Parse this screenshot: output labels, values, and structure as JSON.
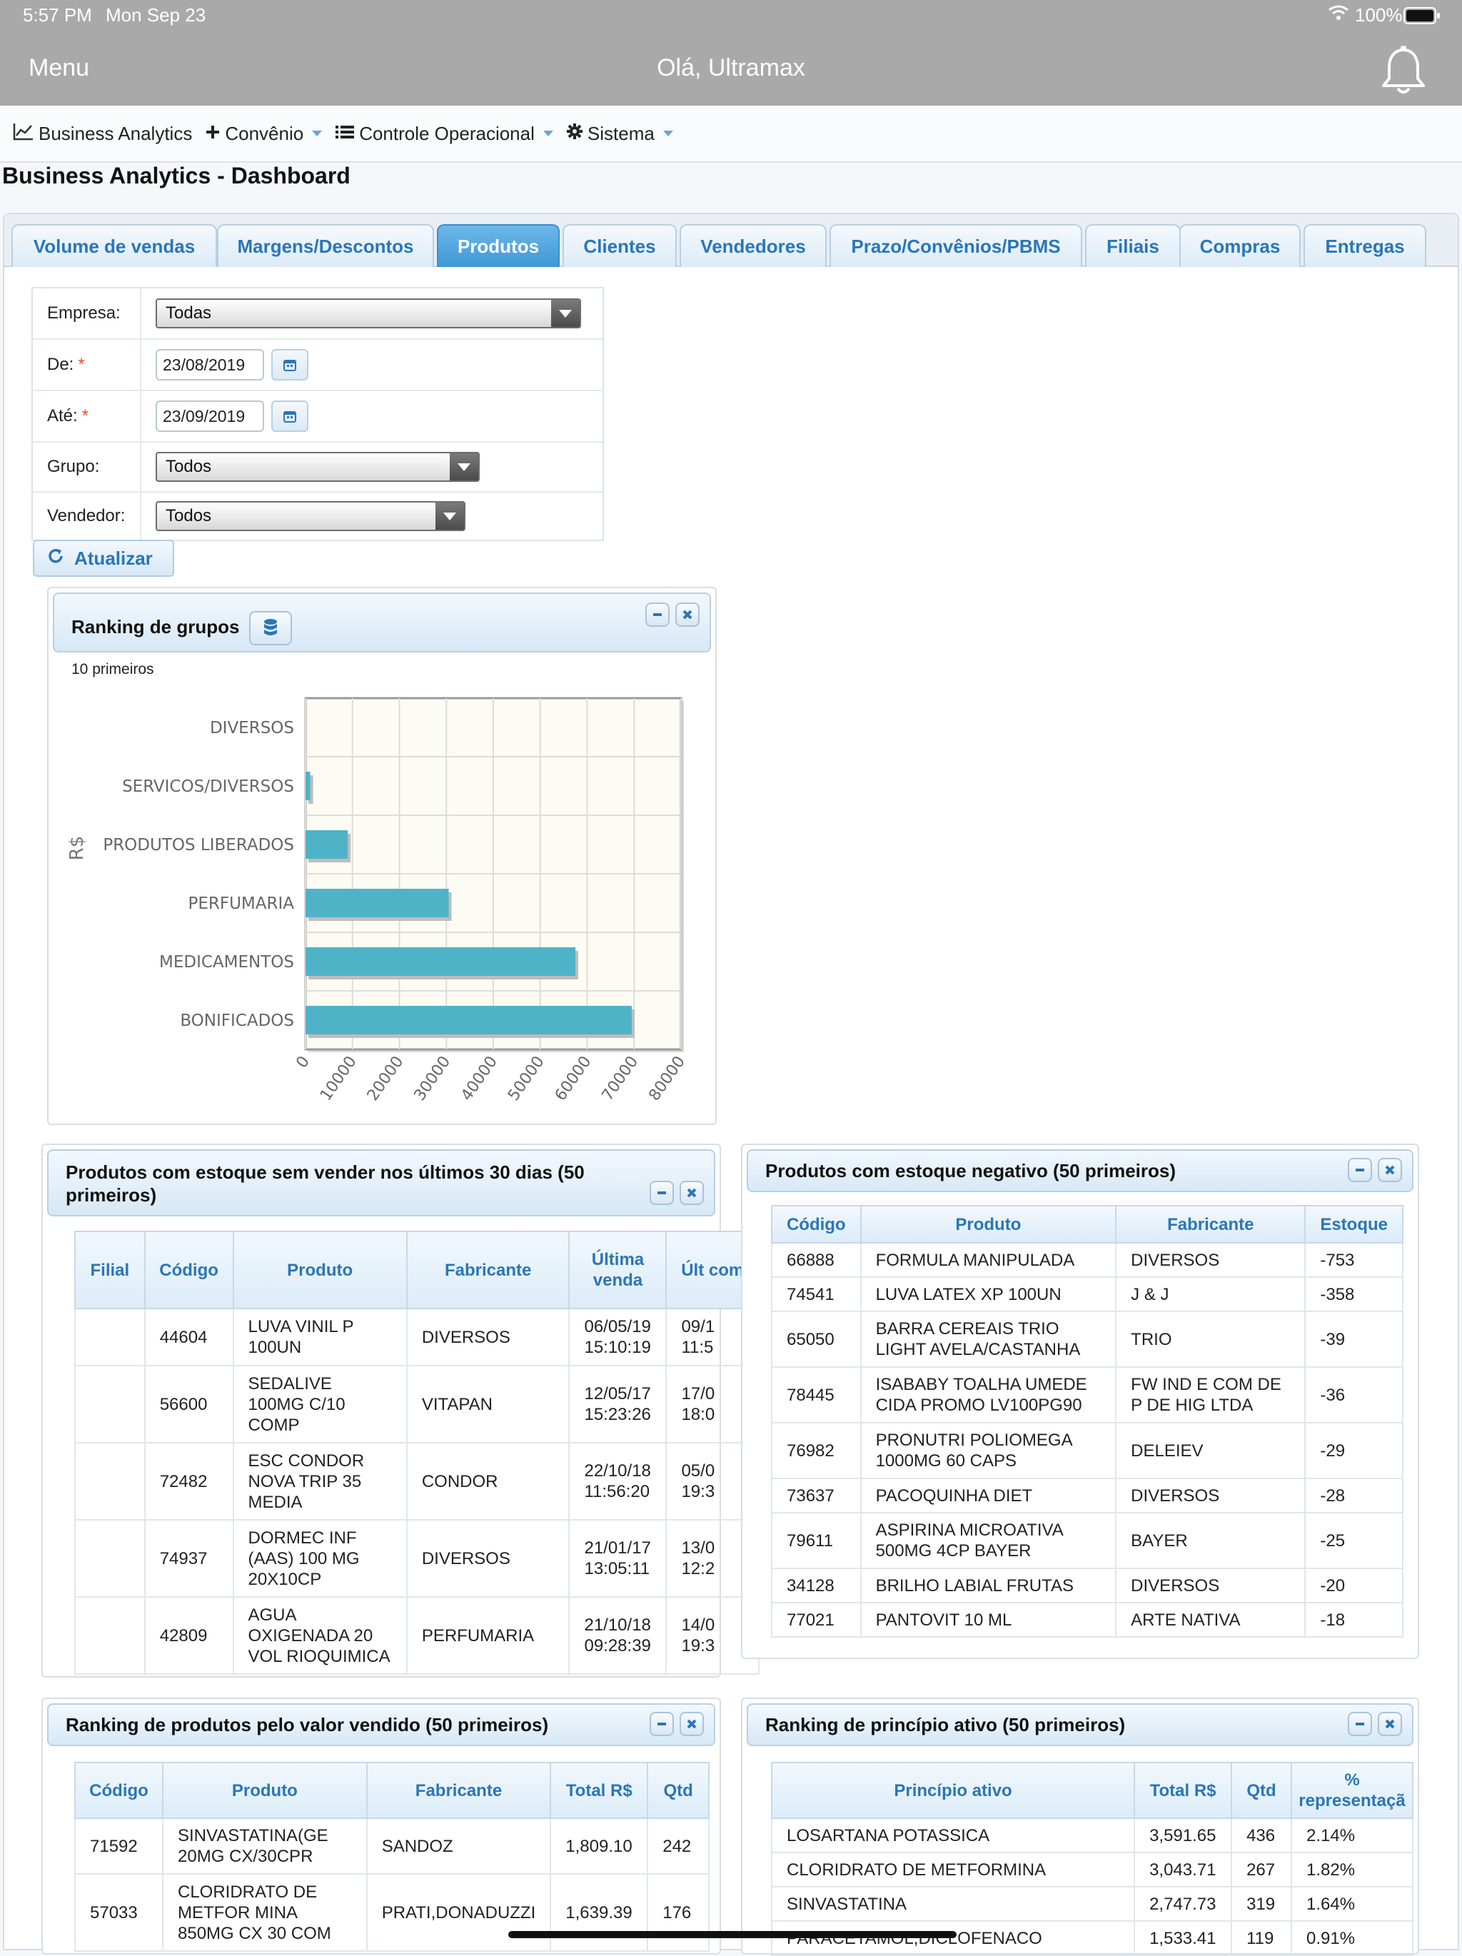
{
  "status_bar": {
    "time": "5:57 PM",
    "date": "Mon Sep 23",
    "battery": "100%"
  },
  "header": {
    "menu_label": "Menu",
    "greeting": "Olá, Ultramax"
  },
  "nav": {
    "items": [
      {
        "label": "Business Analytics",
        "icon": "chart-line-icon"
      },
      {
        "label": "Convênio",
        "icon": "plus-icon"
      },
      {
        "label": "Controle Operacional",
        "icon": "list-icon"
      },
      {
        "label": "Sistema",
        "icon": "gear-icon"
      }
    ]
  },
  "page_title": "Business Analytics - Dashboard",
  "tabs": [
    "Volume de vendas",
    "Margens/Descontos",
    "Produtos",
    "Clientes",
    "Vendedores",
    "Prazo/Convênios/PBMS",
    "Filiais",
    "Compras",
    "Entregas"
  ],
  "active_tab": "Produtos",
  "filters": {
    "empresa": {
      "label": "Empresa:",
      "value": "Todas"
    },
    "de": {
      "label": "De:",
      "value": "23/08/2019",
      "required": "*"
    },
    "ate": {
      "label": "Até:",
      "value": "23/09/2019",
      "required": "*"
    },
    "grupo": {
      "label": "Grupo:",
      "value": "Todos"
    },
    "vendedor": {
      "label": "Vendedor:",
      "value": "Todos"
    }
  },
  "update_button": "Atualizar",
  "ranking_grupos": {
    "title": "Ranking de grupos",
    "subtitle": "10 primeiros"
  },
  "chart_data": {
    "type": "bar",
    "orientation": "horizontal",
    "categories": [
      "DIVERSOS",
      "SERVICOS/DIVERSOS",
      "PRODUTOS LIBERADOS",
      "PERFUMARIA",
      "MEDICAMENTOS",
      "BONIFICADOS"
    ],
    "values": [
      0,
      1000,
      9000,
      30500,
      57500,
      69500
    ],
    "ylabel": "R$",
    "xlim": [
      0,
      80000
    ],
    "xticks": [
      "0",
      "10000",
      "20000",
      "30000",
      "40000",
      "50000",
      "60000",
      "70000",
      "80000"
    ],
    "grid": true,
    "color": "#4fb3c8"
  },
  "estoque_sem_vender": {
    "title": "Produtos com estoque sem vender nos últimos 30 dias (50 primeiros)",
    "columns": [
      "Filial",
      "Código",
      "Produto",
      "Fabricante",
      "Última venda",
      "Últ com"
    ],
    "rows": [
      [
        "",
        "44604",
        "LUVA VINIL P 100UN",
        "DIVERSOS",
        "06/05/19 15:10:19",
        "09/1 11:5"
      ],
      [
        "",
        "56600",
        "SEDALIVE 100MG C/10 COMP",
        "VITAPAN",
        "12/05/17 15:23:26",
        "17/0 18:0"
      ],
      [
        "",
        "72482",
        "ESC CONDOR NOVA TRIP 35 MEDIA",
        "CONDOR",
        "22/10/18 11:56:20",
        "05/0 19:3"
      ],
      [
        "",
        "74937",
        "DORMEC INF (AAS) 100 MG 20X10CP",
        "DIVERSOS",
        "21/01/17 13:05:11",
        "13/0 12:2"
      ],
      [
        "",
        "42809",
        "AGUA OXIGENADA 20 VOL RIOQUIMICA",
        "PERFUMARIA",
        "21/10/18 09:28:39",
        "14/0 19:3"
      ]
    ]
  },
  "estoque_negativo": {
    "title": "Produtos com estoque negativo (50 primeiros)",
    "columns": [
      "Código",
      "Produto",
      "Fabricante",
      "Estoque"
    ],
    "rows": [
      [
        "66888",
        "FORMULA MANIPULADA",
        "DIVERSOS",
        "-753"
      ],
      [
        "74541",
        "LUVA LATEX XP 100UN",
        "J & J",
        "-358"
      ],
      [
        "65050",
        "BARRA CEREAIS TRIO LIGHT AVELA/CASTANHA",
        "TRIO",
        "-39"
      ],
      [
        "78445",
        "ISABABY TOALHA UMEDE CIDA PROMO LV100PG90",
        "FW IND E COM DE P DE HIG LTDA",
        "-36"
      ],
      [
        "76982",
        "PRONUTRI POLIOMEGA 1000MG 60 CAPS",
        "DELEIEV",
        "-29"
      ],
      [
        "73637",
        "PACOQUINHA DIET",
        "DIVERSOS",
        "-28"
      ],
      [
        "79611",
        "ASPIRINA MICROATIVA 500MG 4CP BAYER",
        "BAYER",
        "-25"
      ],
      [
        "34128",
        "BRILHO LABIAL FRUTAS",
        "DIVERSOS",
        "-20"
      ],
      [
        "77021",
        "PANTOVIT 10 ML",
        "ARTE NATIVA",
        "-18"
      ]
    ]
  },
  "ranking_produtos": {
    "title": "Ranking de produtos pelo valor vendido (50 primeiros)",
    "columns": [
      "Código",
      "Produto",
      "Fabricante",
      "Total R$",
      "Qtd"
    ],
    "rows": [
      [
        "71592",
        "SINVASTATINA(GE 20MG CX/30CPR",
        "SANDOZ",
        "1,809.10",
        "242"
      ],
      [
        "57033",
        "CLORIDRATO DE METFOR MINA 850MG CX 30 COM",
        "PRATI,DONADUZZI",
        "1,639.39",
        "176"
      ]
    ]
  },
  "ranking_principio": {
    "title": "Ranking de princípio ativo (50 primeiros)",
    "columns": [
      "Princípio ativo",
      "Total R$",
      "Qtd",
      "% representaçã"
    ],
    "rows": [
      [
        "LOSARTANA POTASSICA",
        "3,591.65",
        "436",
        "2.14%"
      ],
      [
        "CLORIDRATO DE METFORMINA",
        "3,043.71",
        "267",
        "1.82%"
      ],
      [
        "SINVASTATINA",
        "2,747.73",
        "319",
        "1.64%"
      ],
      [
        "PARACETAMOL,DICLOFENACO",
        "1,533.41",
        "119",
        "0.91%"
      ]
    ]
  }
}
